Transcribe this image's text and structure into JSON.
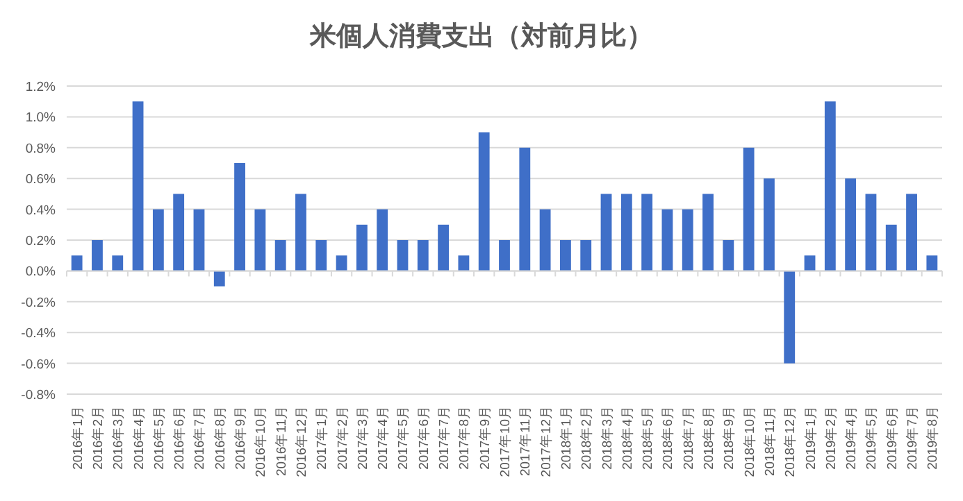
{
  "chart_data": {
    "type": "bar",
    "title": "米個人消費支出（対前月比）",
    "categories": [
      "2016年1月",
      "2016年2月",
      "2016年3月",
      "2016年4月",
      "2016年5月",
      "2016年6月",
      "2016年7月",
      "2016年8月",
      "2016年9月",
      "2016年10月",
      "2016年11月",
      "2016年12月",
      "2017年1月",
      "2017年2月",
      "2017年3月",
      "2017年4月",
      "2017年5月",
      "2017年6月",
      "2017年7月",
      "2017年8月",
      "2017年9月",
      "2017年10月",
      "2017年11月",
      "2017年12月",
      "2018年1月",
      "2018年2月",
      "2018年3月",
      "2018年4月",
      "2018年5月",
      "2018年6月",
      "2018年7月",
      "2018年8月",
      "2018年9月",
      "2018年10月",
      "2018年11月",
      "2018年12月",
      "2019年1月",
      "2019年2月",
      "2019年4月",
      "2019年5月",
      "2019年6月",
      "2019年7月",
      "2019年8月"
    ],
    "values": [
      0.1,
      0.2,
      0.1,
      1.1,
      0.4,
      0.5,
      0.4,
      -0.1,
      0.7,
      0.4,
      0.2,
      0.5,
      0.2,
      0.1,
      0.3,
      0.4,
      0.2,
      0.2,
      0.3,
      0.1,
      0.9,
      0.2,
      0.8,
      0.4,
      0.2,
      0.2,
      0.5,
      0.5,
      0.5,
      0.4,
      0.4,
      0.5,
      0.2,
      0.8,
      0.6,
      -0.6,
      0.1,
      1.1,
      0.6,
      0.5,
      0.3,
      0.5,
      0.1
    ],
    "color": "#3f6fc8",
    "ylim": [
      -0.8,
      1.2
    ],
    "yticks": [
      {
        "value": -0.8,
        "label": "-0.8%"
      },
      {
        "value": -0.6,
        "label": "-0.6%"
      },
      {
        "value": -0.4,
        "label": "-0.4%"
      },
      {
        "value": -0.2,
        "label": "-0.2%"
      },
      {
        "value": 0,
        "label": "0.0%"
      },
      {
        "value": 0.2,
        "label": "0.2%"
      },
      {
        "value": 0.4,
        "label": "0.4%"
      },
      {
        "value": 0.6,
        "label": "0.6%"
      },
      {
        "value": 0.8,
        "label": "0.8%"
      },
      {
        "value": 1.0,
        "label": "1.0%"
      },
      {
        "value": 1.2,
        "label": "1.2%"
      }
    ],
    "grid": "y"
  }
}
